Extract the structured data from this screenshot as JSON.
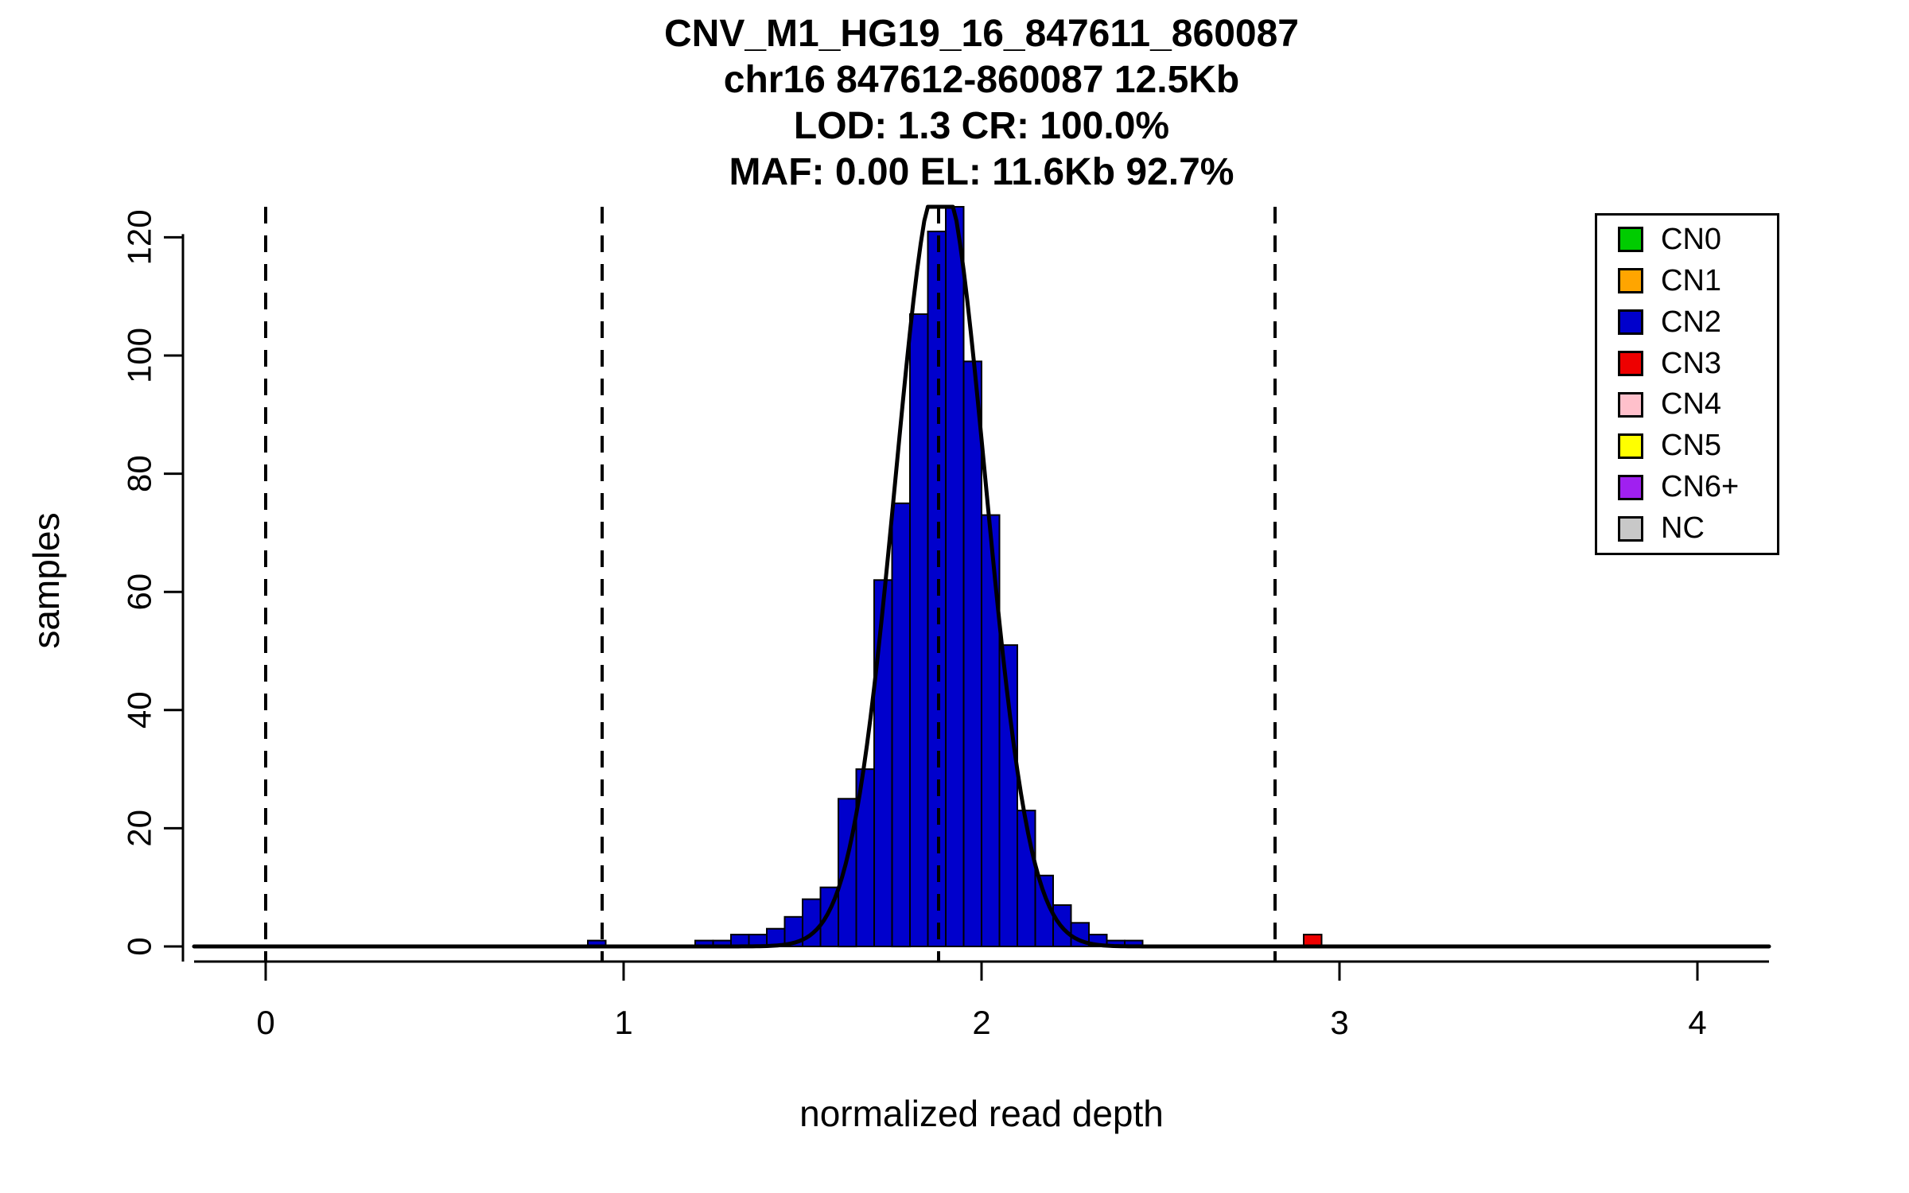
{
  "chart_data": {
    "type": "bar",
    "subtype": "histogram-with-gaussian-fit",
    "title_lines": [
      "CNV_M1_HG19_16_847611_860087",
      "chr16 847612-860087 12.5Kb",
      "LOD: 1.3 CR: 100.0%",
      "MAF: 0.00 EL: 11.6Kb 92.7%"
    ],
    "xlabel": "normalized read depth",
    "ylabel": "samples",
    "xlim": [
      -0.2,
      4.2
    ],
    "ylim": [
      0,
      125
    ],
    "x_ticks": [
      0,
      1,
      2,
      3,
      4
    ],
    "y_ticks": [
      0,
      20,
      40,
      60,
      80,
      100,
      120
    ],
    "grid": false,
    "legend_position": "top-right",
    "bin_width": 0.05,
    "histogram": [
      {
        "x": 0.9,
        "count": 1,
        "cn": "CN2"
      },
      {
        "x": 1.2,
        "count": 1,
        "cn": "CN2"
      },
      {
        "x": 1.25,
        "count": 1,
        "cn": "CN2"
      },
      {
        "x": 1.3,
        "count": 2,
        "cn": "CN2"
      },
      {
        "x": 1.35,
        "count": 2,
        "cn": "CN2"
      },
      {
        "x": 1.4,
        "count": 3,
        "cn": "CN2"
      },
      {
        "x": 1.45,
        "count": 5,
        "cn": "CN2"
      },
      {
        "x": 1.5,
        "count": 8,
        "cn": "CN2"
      },
      {
        "x": 1.55,
        "count": 10,
        "cn": "CN2"
      },
      {
        "x": 1.6,
        "count": 25,
        "cn": "CN2"
      },
      {
        "x": 1.65,
        "count": 30,
        "cn": "CN2"
      },
      {
        "x": 1.7,
        "count": 62,
        "cn": "CN2"
      },
      {
        "x": 1.75,
        "count": 75,
        "cn": "CN2"
      },
      {
        "x": 1.8,
        "count": 107,
        "cn": "CN2"
      },
      {
        "x": 1.85,
        "count": 121,
        "cn": "CN2"
      },
      {
        "x": 1.9,
        "count": 127,
        "cn": "CN2"
      },
      {
        "x": 1.95,
        "count": 99,
        "cn": "CN2"
      },
      {
        "x": 2.0,
        "count": 73,
        "cn": "CN2"
      },
      {
        "x": 2.05,
        "count": 51,
        "cn": "CN2"
      },
      {
        "x": 2.1,
        "count": 23,
        "cn": "CN2"
      },
      {
        "x": 2.15,
        "count": 12,
        "cn": "CN2"
      },
      {
        "x": 2.2,
        "count": 7,
        "cn": "CN2"
      },
      {
        "x": 2.25,
        "count": 4,
        "cn": "CN2"
      },
      {
        "x": 2.3,
        "count": 2,
        "cn": "CN2"
      },
      {
        "x": 2.35,
        "count": 1,
        "cn": "CN2"
      },
      {
        "x": 2.4,
        "count": 1,
        "cn": "CN2"
      },
      {
        "x": 2.9,
        "count": 2,
        "cn": "CN3"
      }
    ],
    "fit_curve": {
      "shape": "gaussian",
      "mean": 1.885,
      "sd": 0.125,
      "peak": 131,
      "color": "#000000"
    },
    "dashed_lines_x": [
      0,
      0.94,
      1.88,
      2.82
    ],
    "legend": [
      {
        "label": "CN0",
        "color": "#00CC00"
      },
      {
        "label": "CN1",
        "color": "#FFA500"
      },
      {
        "label": "CN2",
        "color": "#0000CC"
      },
      {
        "label": "CN3",
        "color": "#EE0000"
      },
      {
        "label": "CN4",
        "color": "#FFC0CB"
      },
      {
        "label": "CN5",
        "color": "#FFFF00"
      },
      {
        "label": "CN6+",
        "color": "#A020F0"
      },
      {
        "label": "NC",
        "color": "#C8C8C8"
      }
    ],
    "axis_color": "#000000",
    "background": "#FFFFFF"
  }
}
